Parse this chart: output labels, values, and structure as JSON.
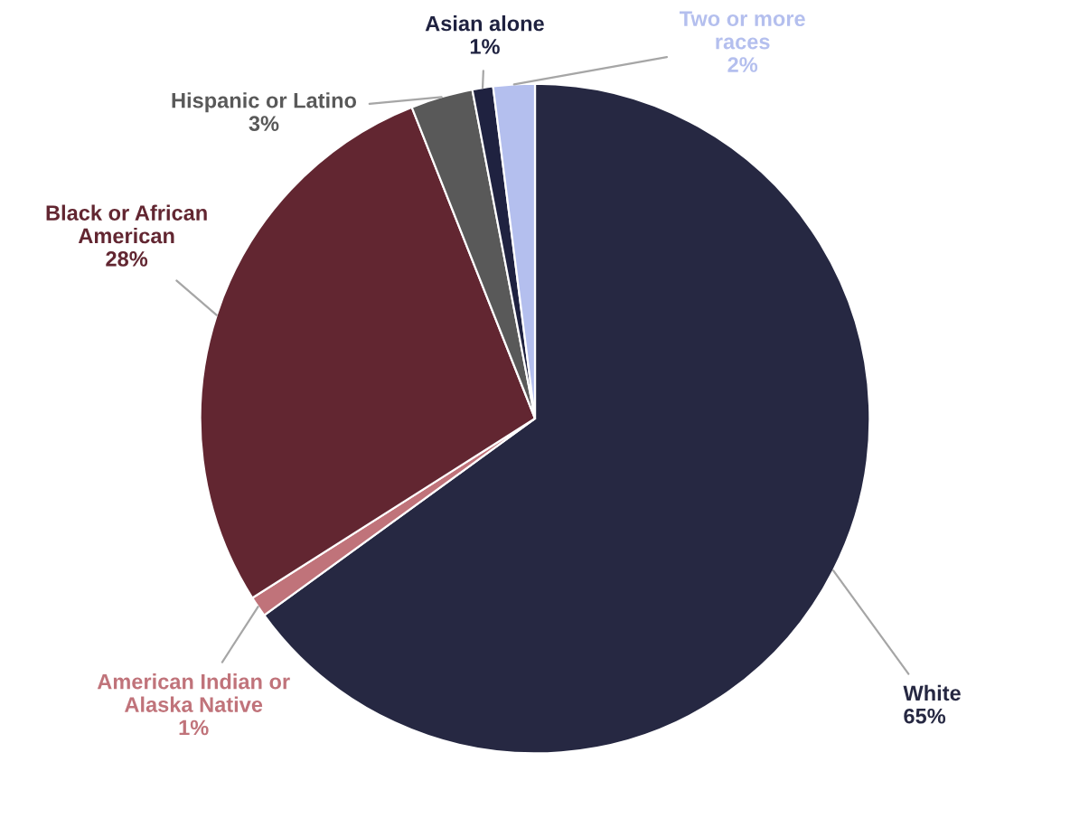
{
  "chart_data": {
    "type": "pie",
    "categories": [
      "White",
      "American Indian or Alaska Native",
      "Black or African American",
      "Hispanic or Latino",
      "Asian alone",
      "Two or more races"
    ],
    "values": [
      65,
      1,
      28,
      3,
      1,
      2
    ],
    "value_labels": [
      "65%",
      "1%",
      "28%",
      "3%",
      "1%",
      "2%"
    ],
    "colors": [
      "#262842",
      "#c0737a",
      "#622631",
      "#595959",
      "#1f2240",
      "#b4bfee"
    ],
    "legend": false
  }
}
